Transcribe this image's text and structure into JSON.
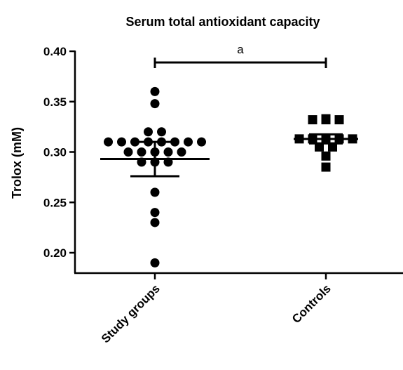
{
  "chart_data": {
    "type": "dot",
    "title": "Serum total antioxidant capacity",
    "ylabel": "Trolox (mM)",
    "annotation": "a",
    "categories": [
      "Study groups",
      "Controls"
    ],
    "markers": [
      "circle",
      "square"
    ],
    "color": "#000000",
    "values": [
      [
        0.36,
        0.348,
        0.32,
        0.32,
        0.31,
        0.31,
        0.31,
        0.31,
        0.31,
        0.31,
        0.31,
        0.31,
        0.3,
        0.3,
        0.3,
        0.3,
        0.3,
        0.29,
        0.29,
        0.29,
        0.26,
        0.24,
        0.23,
        0.19
      ],
      [
        0.333,
        0.332,
        0.332,
        0.332,
        0.313,
        0.313,
        0.313,
        0.313,
        0.313,
        0.305,
        0.305,
        0.296,
        0.285
      ]
    ],
    "means": [
      0.293,
      0.313
    ],
    "errors": [
      0.017,
      0.0045
    ],
    "ylim": [
      0.18,
      0.4
    ],
    "yticks": [
      {
        "value": 0.4,
        "label": "0.40"
      },
      0.35,
      {
        "value": 0.3,
        "label": "0.30"
      },
      0.25,
      {
        "value": 0.2,
        "label": "0.20"
      }
    ]
  }
}
